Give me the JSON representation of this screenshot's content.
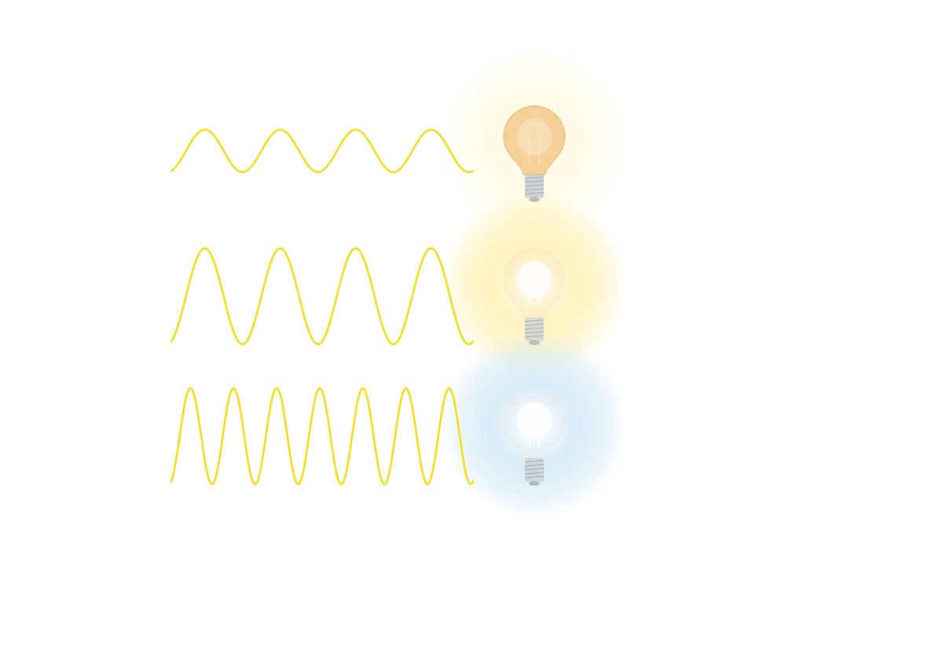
{
  "colors": {
    "background": "#ffffff",
    "wave_stroke": "#f5dd1a",
    "bulb_glass_warm": "#f3c98a",
    "bulb_glass_neutral": "#fbe7b4",
    "bulb_glass_cool": "#e3eef6",
    "bulb_base": "#c9cfd3"
  },
  "rows": [
    {
      "wave": {
        "cycles": 4,
        "amplitude_level": "low",
        "frequency_level": "low"
      },
      "bulb": {
        "icon": "light-bulb-icon",
        "light_tone": "warm-amber",
        "glow_color": "#fff3b8"
      }
    },
    {
      "wave": {
        "cycles": 4,
        "amplitude_level": "high",
        "frequency_level": "low"
      },
      "bulb": {
        "icon": "light-bulb-icon",
        "light_tone": "warm-white",
        "glow_color": "#ffe98a"
      }
    },
    {
      "wave": {
        "cycles": 7,
        "amplitude_level": "high",
        "frequency_level": "high"
      },
      "bulb": {
        "icon": "light-bulb-icon",
        "light_tone": "cool-blue",
        "glow_color": "#b9dcf3"
      }
    }
  ]
}
